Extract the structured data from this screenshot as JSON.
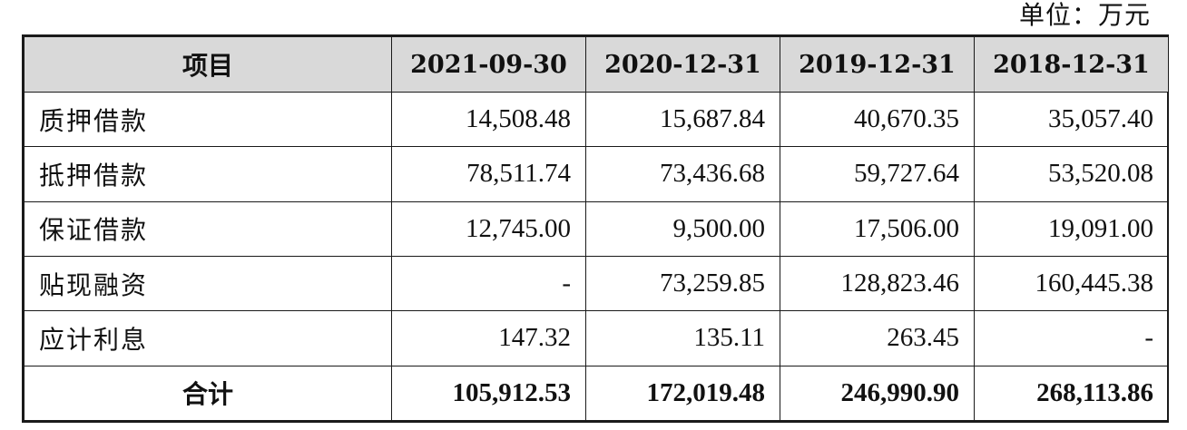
{
  "unit_note": "单位：万元",
  "table": {
    "headers": [
      "项目",
      "2021-09-30",
      "2020-12-31",
      "2019-12-31",
      "2018-12-31"
    ],
    "rows": [
      {
        "label": "质押借款",
        "values": [
          "14,508.48",
          "15,687.84",
          "40,670.35",
          "35,057.40"
        ]
      },
      {
        "label": "抵押借款",
        "values": [
          "78,511.74",
          "73,436.68",
          "59,727.64",
          "53,520.08"
        ]
      },
      {
        "label": "保证借款",
        "values": [
          "12,745.00",
          "9,500.00",
          "17,506.00",
          "19,091.00"
        ]
      },
      {
        "label": "贴现融资",
        "values": [
          "-",
          "73,259.85",
          "128,823.46",
          "160,445.38"
        ]
      },
      {
        "label": "应计利息",
        "values": [
          "147.32",
          "135.11",
          "263.45",
          "-"
        ]
      }
    ],
    "total": {
      "label": "合计",
      "values": [
        "105,912.53",
        "172,019.48",
        "246,990.90",
        "268,113.86"
      ]
    }
  }
}
